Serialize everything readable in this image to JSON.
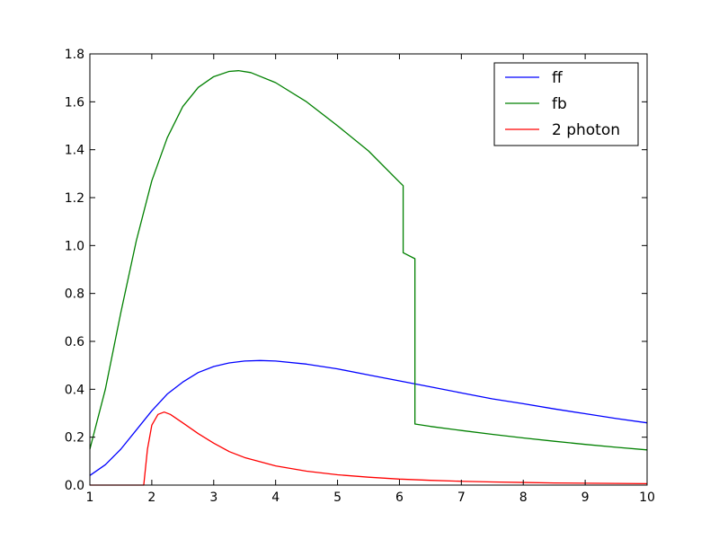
{
  "chart_data": {
    "type": "line",
    "title": "",
    "xlabel": "",
    "ylabel": "",
    "xlim": [
      1,
      10
    ],
    "ylim": [
      0,
      1.8
    ],
    "xticks": [
      1,
      2,
      3,
      4,
      5,
      6,
      7,
      8,
      9,
      10
    ],
    "yticks": [
      0.0,
      0.2,
      0.4,
      0.6,
      0.8,
      1.0,
      1.2,
      1.4,
      1.6,
      1.8
    ],
    "x_tick_labels": [
      "1",
      "2",
      "3",
      "4",
      "5",
      "6",
      "7",
      "8",
      "9",
      "10"
    ],
    "y_tick_labels": [
      "0.0",
      "0.2",
      "0.4",
      "0.6",
      "0.8",
      "1.0",
      "1.2",
      "1.4",
      "1.6",
      "1.8"
    ],
    "grid": false,
    "legend_position": "top-right",
    "series": [
      {
        "name": "ff",
        "color": "#0000ff",
        "points": [
          [
            1.0,
            0.04
          ],
          [
            1.25,
            0.085
          ],
          [
            1.5,
            0.15
          ],
          [
            1.75,
            0.23
          ],
          [
            2.0,
            0.31
          ],
          [
            2.25,
            0.38
          ],
          [
            2.5,
            0.43
          ],
          [
            2.75,
            0.47
          ],
          [
            3.0,
            0.495
          ],
          [
            3.25,
            0.51
          ],
          [
            3.5,
            0.518
          ],
          [
            3.75,
            0.52
          ],
          [
            4.0,
            0.518
          ],
          [
            4.5,
            0.505
          ],
          [
            5.0,
            0.485
          ],
          [
            5.5,
            0.46
          ],
          [
            6.0,
            0.435
          ],
          [
            6.5,
            0.41
          ],
          [
            7.0,
            0.385
          ],
          [
            7.5,
            0.36
          ],
          [
            8.0,
            0.34
          ],
          [
            8.5,
            0.318
          ],
          [
            9.0,
            0.298
          ],
          [
            9.5,
            0.278
          ],
          [
            10.0,
            0.26
          ]
        ]
      },
      {
        "name": "fb",
        "color": "#008000",
        "points": [
          [
            1.0,
            0.15
          ],
          [
            1.25,
            0.4
          ],
          [
            1.5,
            0.72
          ],
          [
            1.75,
            1.02
          ],
          [
            2.0,
            1.27
          ],
          [
            2.25,
            1.45
          ],
          [
            2.5,
            1.58
          ],
          [
            2.75,
            1.66
          ],
          [
            3.0,
            1.705
          ],
          [
            3.25,
            1.727
          ],
          [
            3.4,
            1.73
          ],
          [
            3.6,
            1.722
          ],
          [
            4.0,
            1.68
          ],
          [
            4.5,
            1.6
          ],
          [
            5.0,
            1.5
          ],
          [
            5.5,
            1.395
          ],
          [
            6.0,
            1.265
          ],
          [
            6.06,
            1.25
          ],
          [
            6.06,
            0.97
          ],
          [
            6.25,
            0.945
          ],
          [
            6.25,
            0.255
          ],
          [
            6.5,
            0.245
          ],
          [
            7.0,
            0.228
          ],
          [
            7.5,
            0.212
          ],
          [
            8.0,
            0.197
          ],
          [
            8.5,
            0.183
          ],
          [
            9.0,
            0.17
          ],
          [
            9.5,
            0.158
          ],
          [
            10.0,
            0.147
          ]
        ]
      },
      {
        "name": "2 photon",
        "color": "#ff0000",
        "points": [
          [
            1.0,
            0.0
          ],
          [
            1.87,
            0.0
          ],
          [
            1.93,
            0.15
          ],
          [
            2.0,
            0.25
          ],
          [
            2.1,
            0.295
          ],
          [
            2.2,
            0.305
          ],
          [
            2.3,
            0.295
          ],
          [
            2.5,
            0.26
          ],
          [
            2.75,
            0.215
          ],
          [
            3.0,
            0.175
          ],
          [
            3.25,
            0.14
          ],
          [
            3.5,
            0.115
          ],
          [
            4.0,
            0.08
          ],
          [
            4.5,
            0.058
          ],
          [
            5.0,
            0.043
          ],
          [
            5.5,
            0.033
          ],
          [
            6.0,
            0.025
          ],
          [
            6.5,
            0.02
          ],
          [
            7.0,
            0.016
          ],
          [
            7.5,
            0.013
          ],
          [
            8.0,
            0.011
          ],
          [
            8.5,
            0.009
          ],
          [
            9.0,
            0.008
          ],
          [
            9.5,
            0.007
          ],
          [
            10.0,
            0.006
          ]
        ]
      }
    ]
  }
}
